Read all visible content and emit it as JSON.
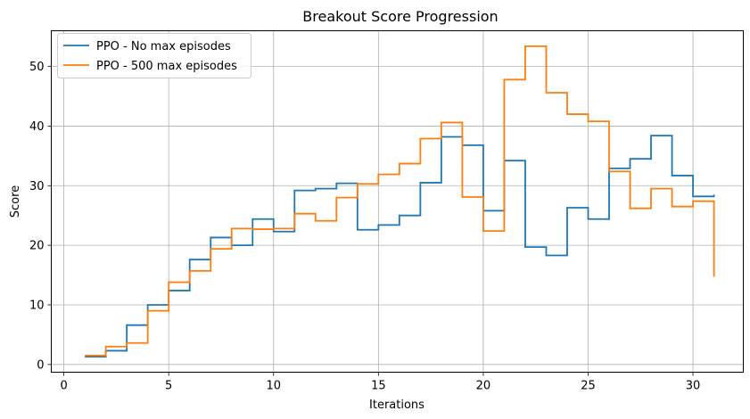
{
  "chart_data": {
    "type": "line",
    "title": "Breakout Score Progression",
    "xlabel": "Iterations",
    "ylabel": "Score",
    "xlim": [
      -0.6,
      32.4
    ],
    "ylim": [
      -1.3,
      56.0
    ],
    "xticks": [
      0,
      5,
      10,
      15,
      20,
      25,
      30
    ],
    "yticks": [
      0,
      10,
      20,
      30,
      40,
      50
    ],
    "grid": true,
    "legend_position": "top-left",
    "step": "post",
    "series": [
      {
        "name": "PPO - No max episodes",
        "color": "#1f77b4",
        "x": [
          1,
          2,
          3,
          4,
          5,
          6,
          7,
          8,
          9,
          10,
          11,
          12,
          13,
          14,
          15,
          16,
          17,
          18,
          19,
          20,
          21,
          22,
          23,
          24,
          25,
          26,
          27,
          28,
          29,
          30,
          31
        ],
        "values": [
          1.3,
          2.3,
          6.6,
          10.0,
          12.4,
          17.6,
          21.3,
          20.0,
          24.4,
          22.3,
          29.2,
          29.5,
          30.4,
          22.6,
          23.4,
          25.0,
          30.5,
          38.2,
          36.8,
          25.8,
          34.2,
          19.7,
          18.3,
          26.3,
          24.4,
          32.9,
          34.5,
          38.4,
          31.7,
          28.2,
          28.5
        ]
      },
      {
        "name": "PPO - 500 max episodes",
        "color": "#ff7f0e",
        "x": [
          1,
          2,
          3,
          4,
          5,
          6,
          7,
          8,
          9,
          10,
          11,
          12,
          13,
          14,
          15,
          16,
          17,
          18,
          19,
          20,
          21,
          22,
          23,
          24,
          25,
          26,
          27,
          28,
          29,
          30,
          31
        ],
        "values": [
          1.5,
          3.0,
          3.6,
          9.0,
          13.8,
          15.7,
          19.4,
          22.8,
          22.7,
          22.8,
          25.3,
          24.1,
          28.0,
          30.3,
          31.9,
          33.7,
          37.9,
          40.6,
          28.1,
          22.4,
          47.8,
          53.4,
          45.6,
          42.0,
          40.8,
          32.4,
          26.2,
          29.5,
          26.5,
          27.4,
          14.7
        ]
      }
    ]
  }
}
